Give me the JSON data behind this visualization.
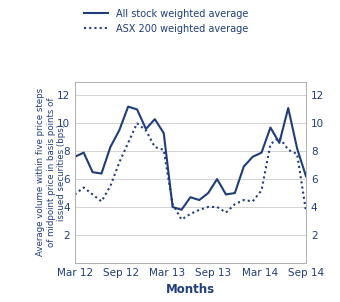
{
  "ylabel_left": "Average volume within five price steps\nof midpoint price in basis points of\nissued securities (bps)",
  "xlabel": "Months",
  "line_color": "#1F3D7A",
  "bg_color": "#FFFFFF",
  "ylim": [
    0,
    13
  ],
  "yticks": [
    2,
    4,
    6,
    8,
    10,
    12
  ],
  "x_labels": [
    "Mar 12",
    "Sep 12",
    "Mar 13",
    "Sep 13",
    "Mar 14",
    "Sep 14"
  ],
  "legend_solid": "All stock weighted average",
  "legend_dotted": "ASX 200 weighted average",
  "solid_y": [
    7.6,
    7.9,
    6.5,
    6.4,
    8.3,
    9.5,
    11.2,
    11.0,
    9.6,
    10.3,
    9.3,
    4.0,
    3.8,
    4.7,
    4.5,
    5.0,
    6.0,
    4.9,
    5.0,
    6.9,
    7.6,
    7.9,
    9.7,
    8.6,
    11.1,
    8.2,
    6.2
  ],
  "dotted_y": [
    4.9,
    5.4,
    4.9,
    4.4,
    5.5,
    7.2,
    8.6,
    10.0,
    9.5,
    8.3,
    8.1,
    4.2,
    3.1,
    3.5,
    3.8,
    4.0,
    4.0,
    3.6,
    4.2,
    4.5,
    4.4,
    5.2,
    8.5,
    9.0,
    8.1,
    7.8,
    3.7
  ],
  "grid_color": "#CCCCCC",
  "spine_color": "#AAAAAA"
}
